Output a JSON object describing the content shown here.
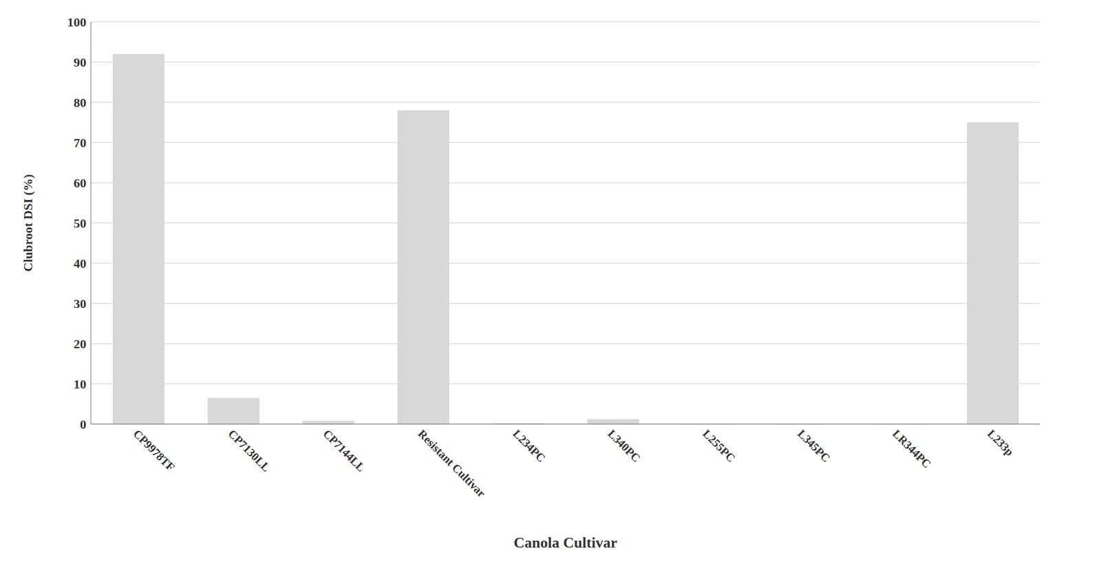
{
  "chart_data": {
    "type": "bar",
    "categories": [
      "CP9978TF",
      "CP7130LL",
      "CP7144LL",
      "Resistant Cultivar",
      "L234PC",
      "L340PC",
      "L255PC",
      "L345PC",
      "LR344PC",
      "L233p"
    ],
    "values": [
      92,
      6.5,
      0.8,
      78,
      0.2,
      1.2,
      0.1,
      0.1,
      0.1,
      75
    ],
    "color": "#d8d8d8",
    "xlabel": "Canola Cultivar",
    "ylabel": "Clubroot DSI (%)",
    "ylim": [
      0,
      100
    ],
    "yticks": [
      0,
      10,
      20,
      30,
      40,
      50,
      60,
      70,
      80,
      90,
      100
    ],
    "grid": true
  }
}
